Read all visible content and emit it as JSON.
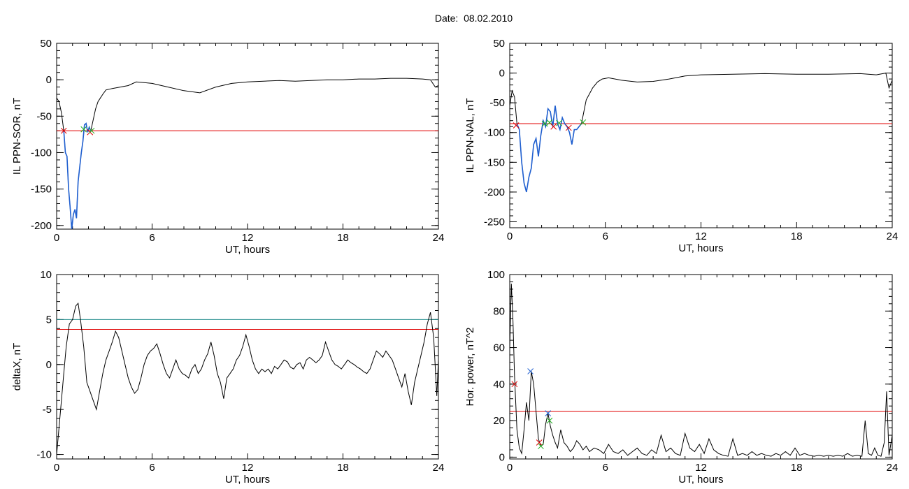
{
  "page": {
    "title": "Date:  08.02.2010"
  },
  "colors": {
    "axes": "#000000",
    "threshold": "#e00000",
    "threshold_secondary": "#2a8f8f",
    "event_trace": "#1f5fd0",
    "marker_start": "#e00000",
    "marker_end": "#22b022",
    "marker_peak": "#1f5fd0"
  },
  "chart_data": [
    {
      "type": "line",
      "xlabel": "UT, hours",
      "ylabel": "IL PPN-SOR, nT",
      "xlim": [
        0,
        24
      ],
      "ylim": [
        -205,
        50
      ],
      "xticks": [
        0,
        6,
        12,
        18,
        24
      ],
      "yticks": [
        -200,
        -150,
        -100,
        -50,
        0,
        50
      ],
      "threshold": -70,
      "series": [
        {
          "x": [
            0,
            0.15,
            0.3,
            0.45,
            0.55,
            0.65,
            0.75,
            0.85,
            0.95,
            1.05,
            1.15,
            1.25,
            1.35,
            1.45,
            1.55,
            1.65,
            1.75,
            1.85,
            1.95,
            2.05,
            2.15,
            2.3,
            2.45,
            2.6,
            2.75,
            2.9,
            3.1,
            3.5,
            4,
            4.5,
            5,
            5.5,
            6,
            7,
            8,
            9,
            10,
            11,
            12,
            13,
            14,
            15,
            16,
            17,
            18,
            19,
            20,
            21,
            22,
            23,
            23.5,
            23.8,
            24
          ],
          "y": [
            -25,
            -30,
            -45,
            -70,
            -100,
            -105,
            -150,
            -175,
            -205,
            -185,
            -178,
            -190,
            -140,
            -120,
            -100,
            -85,
            -62,
            -60,
            -72,
            -65,
            -70,
            -55,
            -40,
            -30,
            -25,
            -20,
            -14,
            -12,
            -10,
            -8,
            -3,
            -4,
            -5,
            -10,
            -15,
            -18,
            -10,
            -5,
            -3,
            -2,
            -1,
            -2,
            -1,
            0,
            0,
            1,
            1,
            2,
            2,
            1,
            0,
            -10,
            -8
          ]
        }
      ],
      "event_segment": {
        "x_start": 0.45,
        "x_end": 2.15
      },
      "markers": [
        {
          "x": 0.45,
          "y": -70,
          "kind": "start"
        },
        {
          "x": 1.7,
          "y": -68,
          "kind": "end"
        },
        {
          "x": 2.1,
          "y": -72,
          "kind": "start"
        },
        {
          "x": 2.2,
          "y": -70,
          "kind": "end"
        }
      ]
    },
    {
      "type": "line",
      "xlabel": "UT, hours",
      "ylabel": "IL PPN-NAL, nT",
      "xlim": [
        0,
        24
      ],
      "ylim": [
        -260,
        50
      ],
      "xticks": [
        0,
        6,
        12,
        18,
        24
      ],
      "yticks": [
        -250,
        -200,
        -150,
        -100,
        -50,
        0,
        50
      ],
      "threshold": -85,
      "series": [
        {
          "x": [
            0,
            0.15,
            0.3,
            0.45,
            0.6,
            0.75,
            0.9,
            1.05,
            1.2,
            1.35,
            1.5,
            1.65,
            1.8,
            1.95,
            2.1,
            2.25,
            2.4,
            2.55,
            2.7,
            2.85,
            3,
            3.15,
            3.3,
            3.45,
            3.6,
            3.75,
            3.9,
            4.05,
            4.2,
            4.35,
            4.5,
            4.65,
            4.8,
            5,
            5.2,
            5.5,
            5.8,
            6.2,
            7,
            8,
            9,
            10,
            11,
            12,
            14,
            16,
            18,
            20,
            22,
            23,
            23.6,
            23.8,
            24
          ],
          "y": [
            -55,
            -30,
            -40,
            -85,
            -95,
            -150,
            -185,
            -200,
            -175,
            -160,
            -120,
            -110,
            -140,
            -105,
            -80,
            -90,
            -60,
            -65,
            -90,
            -55,
            -85,
            -95,
            -75,
            -85,
            -90,
            -100,
            -120,
            -95,
            -95,
            -90,
            -85,
            -65,
            -45,
            -35,
            -25,
            -15,
            -10,
            -8,
            -12,
            -15,
            -14,
            -10,
            -5,
            -3,
            -2,
            -1,
            -2,
            -2,
            -1,
            -3,
            0,
            -25,
            -12
          ]
        }
      ],
      "event_segment": {
        "x_start": 0.4,
        "x_end": 4.6
      },
      "markers": [
        {
          "x": 0.4,
          "y": -88,
          "kind": "start"
        },
        {
          "x": 2.2,
          "y": -85,
          "kind": "end"
        },
        {
          "x": 2.5,
          "y": -83,
          "kind": "end"
        },
        {
          "x": 2.75,
          "y": -90,
          "kind": "start"
        },
        {
          "x": 3.1,
          "y": -84,
          "kind": "end"
        },
        {
          "x": 3.7,
          "y": -92,
          "kind": "start"
        },
        {
          "x": 4.6,
          "y": -83,
          "kind": "end"
        }
      ]
    },
    {
      "type": "line",
      "xlabel": "UT, hours",
      "ylabel": "deltaX, nT",
      "xlim": [
        0,
        24
      ],
      "ylim": [
        -10.5,
        10
      ],
      "xticks": [
        0,
        6,
        12,
        18,
        24
      ],
      "yticks": [
        -10,
        -5,
        0,
        5,
        10
      ],
      "threshold": 3.9,
      "threshold_secondary": 5,
      "series": [
        {
          "x": [
            0,
            0.1,
            0.25,
            0.45,
            0.6,
            0.8,
            1.0,
            1.2,
            1.35,
            1.5,
            1.7,
            1.9,
            2.1,
            2.3,
            2.5,
            2.7,
            2.9,
            3.1,
            3.3,
            3.5,
            3.7,
            3.9,
            4.1,
            4.3,
            4.5,
            4.7,
            4.9,
            5.1,
            5.3,
            5.5,
            5.7,
            5.9,
            6.1,
            6.3,
            6.5,
            6.7,
            6.9,
            7.1,
            7.3,
            7.5,
            7.7,
            7.9,
            8.1,
            8.3,
            8.5,
            8.7,
            8.9,
            9.1,
            9.3,
            9.5,
            9.7,
            9.9,
            10.1,
            10.3,
            10.5,
            10.7,
            10.9,
            11.1,
            11.3,
            11.5,
            11.7,
            11.9,
            12.1,
            12.3,
            12.5,
            12.7,
            12.9,
            13.1,
            13.3,
            13.5,
            13.7,
            13.9,
            14.1,
            14.3,
            14.5,
            14.7,
            14.9,
            15.1,
            15.3,
            15.5,
            15.7,
            15.9,
            16.1,
            16.3,
            16.5,
            16.7,
            16.9,
            17.1,
            17.3,
            17.5,
            17.7,
            17.9,
            18.1,
            18.3,
            18.5,
            18.7,
            18.9,
            19.1,
            19.3,
            19.5,
            19.7,
            19.9,
            20.1,
            20.3,
            20.5,
            20.7,
            20.9,
            21.1,
            21.3,
            21.5,
            21.7,
            21.9,
            22.1,
            22.3,
            22.5,
            22.7,
            22.9,
            23.1,
            23.3,
            23.5,
            23.7,
            23.9,
            24
          ],
          "y": [
            -10,
            -8,
            -5,
            -1,
            2,
            4.5,
            5,
            6.5,
            6.8,
            5,
            2,
            -2,
            -3,
            -4,
            -5,
            -3,
            -1,
            0.5,
            1.5,
            2.5,
            3.7,
            3,
            1.5,
            0,
            -1.5,
            -2.5,
            -3.2,
            -2.8,
            -1.5,
            0,
            1,
            1.5,
            1.8,
            2.3,
            1.2,
            0,
            -1,
            -1.5,
            -0.5,
            0.5,
            -0.5,
            -1,
            -1.2,
            -1.5,
            -0.5,
            0,
            -1,
            -0.5,
            0.5,
            1.2,
            2.5,
            1,
            -1,
            -2,
            -3.8,
            -1.5,
            -1,
            -0.5,
            0.5,
            1,
            2,
            3.3,
            2,
            0.5,
            -0.5,
            -1,
            -0.5,
            -0.8,
            -0.5,
            -1,
            -0.2,
            -0.5,
            0,
            0.5,
            0.3,
            -0.3,
            -0.5,
            0,
            0.2,
            -0.5,
            0.5,
            0.8,
            0.5,
            0.2,
            0.5,
            1,
            2.5,
            1.5,
            0.5,
            0,
            -0.2,
            -0.5,
            0,
            0.5,
            0.2,
            0,
            -0.3,
            -0.5,
            -0.8,
            -1,
            -0.5,
            0.5,
            1.5,
            1.2,
            0.8,
            1.5,
            1,
            0.5,
            -0.5,
            -1.5,
            -2.5,
            -1,
            -3,
            -4.5,
            -2,
            -0.5,
            1,
            2.5,
            4.5,
            5.8,
            3,
            -3.5,
            0.5
          ]
        }
      ]
    },
    {
      "type": "line",
      "xlabel": "UT, hours",
      "ylabel": "Hor. power, nT^2",
      "xlim": [
        0,
        24
      ],
      "ylim": [
        -1,
        100
      ],
      "xticks": [
        0,
        6,
        12,
        18,
        24
      ],
      "yticks": [
        0,
        20,
        40,
        60,
        80,
        100
      ],
      "threshold": 25,
      "series": [
        {
          "x": [
            0,
            0.1,
            0.2,
            0.3,
            0.45,
            0.6,
            0.75,
            0.9,
            1.05,
            1.2,
            1.35,
            1.5,
            1.65,
            1.8,
            1.95,
            2.1,
            2.25,
            2.4,
            2.55,
            2.7,
            2.85,
            3.0,
            3.2,
            3.4,
            3.6,
            3.8,
            4.0,
            4.2,
            4.4,
            4.6,
            4.8,
            5.0,
            5.3,
            5.6,
            5.9,
            6.2,
            6.5,
            6.8,
            7.1,
            7.4,
            7.7,
            8.0,
            8.3,
            8.6,
            8.9,
            9.2,
            9.5,
            9.8,
            10.1,
            10.4,
            10.7,
            11.0,
            11.3,
            11.6,
            11.9,
            12.2,
            12.5,
            12.8,
            13.1,
            13.4,
            13.7,
            14.0,
            14.3,
            14.6,
            14.9,
            15.2,
            15.5,
            15.8,
            16.1,
            16.4,
            16.7,
            17.0,
            17.3,
            17.6,
            17.9,
            18.2,
            18.5,
            18.8,
            19.1,
            19.4,
            19.7,
            20.0,
            20.3,
            20.6,
            20.9,
            21.2,
            21.5,
            21.8,
            22.1,
            22.3,
            22.5,
            22.7,
            22.9,
            23.1,
            23.3,
            23.5,
            23.65,
            23.8,
            24
          ],
          "y": [
            60,
            95,
            75,
            45,
            15,
            5,
            2,
            15,
            30,
            20,
            47,
            40,
            25,
            10,
            6,
            7,
            18,
            24,
            17,
            12,
            8,
            5,
            15,
            8,
            6,
            3,
            5,
            9,
            7,
            4,
            6,
            3,
            5,
            4,
            2,
            7,
            3,
            2,
            4,
            1,
            3,
            5,
            2,
            1,
            4,
            2,
            12,
            3,
            5,
            2,
            1,
            13,
            5,
            3,
            7,
            2,
            10,
            4,
            2,
            1,
            0.5,
            10,
            1,
            2,
            1,
            3,
            1,
            2,
            1,
            0.5,
            2,
            1,
            3,
            1,
            5,
            1,
            2,
            1,
            0.5,
            1,
            0.5,
            1,
            0.5,
            1,
            0.5,
            2,
            0.5,
            1,
            0.5,
            20,
            2,
            1,
            5,
            1,
            0.5,
            8,
            36,
            1,
            12
          ]
        }
      ],
      "markers": [
        {
          "x": 0.3,
          "y": 40,
          "kind": "start"
        },
        {
          "x": 1.3,
          "y": 47,
          "kind": "peak"
        },
        {
          "x": 1.85,
          "y": 8,
          "kind": "start"
        },
        {
          "x": 1.95,
          "y": 6,
          "kind": "end"
        },
        {
          "x": 2.4,
          "y": 24,
          "kind": "peak"
        },
        {
          "x": 2.5,
          "y": 20,
          "kind": "end"
        }
      ]
    }
  ]
}
